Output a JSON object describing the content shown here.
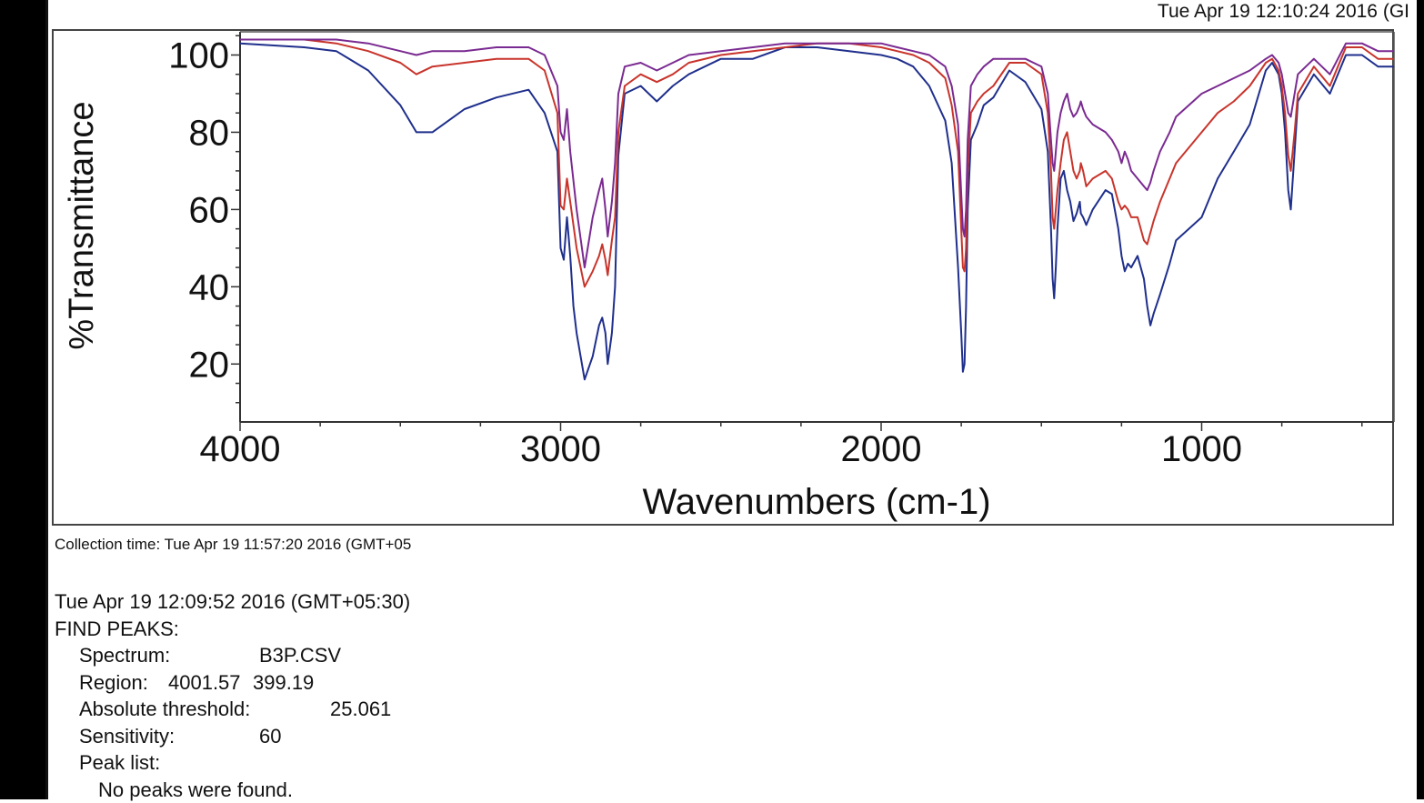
{
  "header": {
    "timestamp": "Tue Apr 19 12:10:24 2016 (GI"
  },
  "footer": {
    "collection_time": "Collection time: Tue Apr 19 11:57:20 2016 (GMT+05",
    "report_time": "Tue Apr 19 12:09:52 2016 (GMT+05:30)",
    "find_peaks_label": "FIND PEAKS:",
    "spectrum_label": "Spectrum:",
    "spectrum_value": "B3P.CSV",
    "region_label": "Region:",
    "region_from": "4001.57",
    "region_to": "399.19",
    "threshold_label": "Absolute threshold:",
    "threshold_value": "25.061",
    "sensitivity_label": "Sensitivity:",
    "sensitivity_value": "60",
    "peaklist_label": "Peak list:",
    "peaklist_value": "No peaks were found."
  },
  "chart_data": {
    "type": "line",
    "xlabel": "Wavenumbers (cm-1)",
    "ylabel": "%Transmittance",
    "xlim": [
      4000,
      400
    ],
    "ylim": [
      5,
      106
    ],
    "x_ticks": [
      "4000",
      "3000",
      "2000",
      "1000"
    ],
    "y_ticks": [
      "100",
      "80",
      "60",
      "40",
      "20"
    ],
    "grid": false,
    "series": [
      {
        "color": "#1f2f8c",
        "x": [
          4000,
          3800,
          3700,
          3600,
          3500,
          3450,
          3400,
          3300,
          3200,
          3100,
          3050,
          3010,
          3000,
          2990,
          2980,
          2970,
          2960,
          2950,
          2925,
          2900,
          2880,
          2870,
          2860,
          2853,
          2840,
          2830,
          2820,
          2800,
          2750,
          2700,
          2650,
          2600,
          2500,
          2400,
          2300,
          2200,
          2100,
          2000,
          1950,
          1900,
          1850,
          1800,
          1780,
          1760,
          1750,
          1745,
          1740,
          1735,
          1730,
          1720,
          1700,
          1680,
          1650,
          1600,
          1550,
          1500,
          1480,
          1470,
          1465,
          1460,
          1455,
          1450,
          1440,
          1430,
          1420,
          1410,
          1400,
          1390,
          1380,
          1377,
          1370,
          1360,
          1340,
          1300,
          1280,
          1260,
          1250,
          1240,
          1230,
          1220,
          1200,
          1180,
          1170,
          1160,
          1150,
          1130,
          1100,
          1080,
          1000,
          950,
          900,
          850,
          800,
          780,
          760,
          750,
          740,
          730,
          722,
          710,
          700,
          650,
          600,
          550,
          500,
          450,
          400
        ],
        "y": [
          103,
          102,
          101,
          96,
          87,
          80,
          80,
          86,
          89,
          91,
          85,
          75,
          50,
          47,
          58,
          48,
          35,
          28,
          16,
          22,
          30,
          32,
          28,
          20,
          28,
          40,
          74,
          90,
          92,
          88,
          92,
          95,
          99,
          99,
          102,
          102,
          101,
          100,
          99,
          97,
          92,
          83,
          72,
          45,
          28,
          18,
          20,
          35,
          60,
          78,
          82,
          87,
          89,
          96,
          93,
          86,
          75,
          55,
          42,
          37,
          45,
          55,
          68,
          70,
          65,
          62,
          57,
          59,
          62,
          59,
          58,
          56,
          60,
          65,
          64,
          55,
          48,
          44,
          46,
          45,
          48,
          42,
          35,
          30,
          33,
          38,
          46,
          52,
          58,
          68,
          75,
          82,
          96,
          98,
          95,
          90,
          80,
          65,
          60,
          75,
          88,
          95,
          90,
          100,
          100,
          97,
          97
        ]
      },
      {
        "color": "#c8342b",
        "x": [
          4000,
          3800,
          3700,
          3600,
          3500,
          3450,
          3400,
          3300,
          3200,
          3100,
          3050,
          3010,
          3000,
          2990,
          2980,
          2970,
          2950,
          2925,
          2900,
          2880,
          2870,
          2860,
          2853,
          2840,
          2830,
          2820,
          2800,
          2750,
          2700,
          2650,
          2600,
          2500,
          2400,
          2300,
          2200,
          2100,
          2000,
          1950,
          1900,
          1850,
          1800,
          1780,
          1760,
          1750,
          1745,
          1740,
          1735,
          1730,
          1720,
          1700,
          1680,
          1650,
          1600,
          1550,
          1500,
          1480,
          1470,
          1465,
          1460,
          1455,
          1450,
          1440,
          1430,
          1420,
          1410,
          1400,
          1390,
          1380,
          1377,
          1370,
          1360,
          1340,
          1300,
          1280,
          1260,
          1250,
          1240,
          1230,
          1220,
          1200,
          1180,
          1170,
          1160,
          1150,
          1130,
          1100,
          1080,
          1000,
          950,
          900,
          850,
          800,
          780,
          760,
          750,
          740,
          730,
          722,
          710,
          700,
          650,
          600,
          550,
          500,
          450,
          400
        ],
        "y": [
          104,
          104,
          103,
          101,
          98,
          95,
          97,
          98,
          99,
          99,
          96,
          85,
          61,
          60,
          68,
          62,
          50,
          40,
          44,
          48,
          51,
          47,
          43,
          52,
          58,
          80,
          92,
          95,
          93,
          95,
          98,
          100,
          101,
          102,
          103,
          103,
          102,
          101,
          100,
          98,
          94,
          87,
          75,
          55,
          45,
          44,
          50,
          70,
          85,
          88,
          90,
          92,
          98,
          98,
          95,
          85,
          70,
          58,
          55,
          60,
          65,
          72,
          78,
          80,
          75,
          70,
          68,
          70,
          72,
          70,
          66,
          68,
          70,
          68,
          62,
          60,
          61,
          60,
          58,
          58,
          52,
          51,
          54,
          57,
          62,
          68,
          72,
          80,
          85,
          88,
          92,
          98,
          99,
          96,
          92,
          85,
          74,
          70,
          80,
          90,
          97,
          92,
          102,
          102,
          99,
          99
        ]
      },
      {
        "color": "#7a2a91",
        "x": [
          4000,
          3800,
          3700,
          3600,
          3500,
          3450,
          3400,
          3300,
          3200,
          3100,
          3050,
          3010,
          3000,
          2990,
          2980,
          2970,
          2950,
          2925,
          2900,
          2880,
          2870,
          2860,
          2853,
          2840,
          2830,
          2820,
          2800,
          2750,
          2700,
          2650,
          2600,
          2500,
          2400,
          2300,
          2200,
          2100,
          2000,
          1950,
          1900,
          1850,
          1800,
          1780,
          1760,
          1750,
          1745,
          1740,
          1735,
          1730,
          1720,
          1700,
          1680,
          1650,
          1600,
          1550,
          1500,
          1480,
          1470,
          1465,
          1460,
          1455,
          1450,
          1440,
          1430,
          1420,
          1410,
          1400,
          1390,
          1380,
          1377,
          1370,
          1360,
          1340,
          1300,
          1280,
          1260,
          1250,
          1240,
          1230,
          1220,
          1200,
          1180,
          1170,
          1160,
          1150,
          1130,
          1100,
          1080,
          1000,
          950,
          900,
          850,
          800,
          780,
          760,
          750,
          740,
          730,
          722,
          710,
          700,
          650,
          600,
          550,
          500,
          450,
          400
        ],
        "y": [
          104,
          104,
          104,
          103,
          101,
          100,
          101,
          101,
          102,
          102,
          100,
          92,
          80,
          78,
          86,
          75,
          60,
          45,
          58,
          65,
          68,
          60,
          53,
          62,
          72,
          90,
          97,
          98,
          96,
          98,
          100,
          101,
          102,
          103,
          103,
          103,
          103,
          102,
          101,
          100,
          97,
          92,
          82,
          64,
          55,
          53,
          60,
          78,
          92,
          95,
          97,
          99,
          99,
          99,
          97,
          90,
          78,
          72,
          70,
          75,
          80,
          85,
          88,
          90,
          86,
          84,
          85,
          87,
          88,
          86,
          84,
          82,
          80,
          78,
          75,
          72,
          75,
          73,
          70,
          68,
          66,
          65,
          67,
          70,
          75,
          80,
          84,
          90,
          92,
          94,
          96,
          99,
          100,
          98,
          95,
          90,
          85,
          84,
          90,
          95,
          99,
          95,
          103,
          103,
          101,
          101
        ]
      }
    ]
  }
}
